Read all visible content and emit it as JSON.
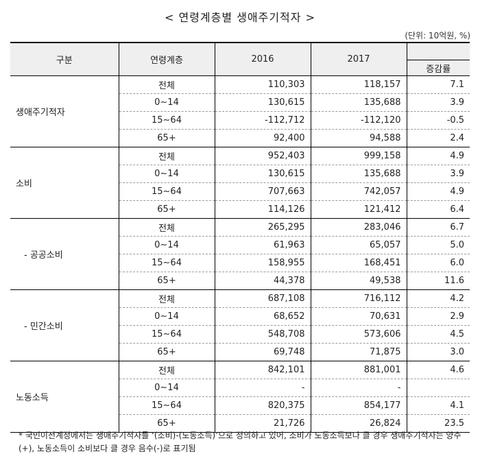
{
  "title": "< 연령계층별  생애주기적자 >",
  "unit": "(단위: 10억원, %)",
  "headers": {
    "category": "구분",
    "age_group": "연령계층",
    "y2016": "2016",
    "y2017": "2017",
    "growth": "증감률"
  },
  "groups": [
    {
      "name": "생애주기적자",
      "rows": [
        {
          "age": "전체",
          "v2016": "110,303",
          "v2017": "118,157",
          "growth": "7.1"
        },
        {
          "age": "0∼14",
          "v2016": "130,615",
          "v2017": "135,688",
          "growth": "3.9"
        },
        {
          "age": "15∼64",
          "v2016": "-112,712",
          "v2017": "-112,120",
          "growth": "-0.5"
        },
        {
          "age": "65+",
          "v2016": "92,400",
          "v2017": "94,588",
          "growth": "2.4"
        }
      ]
    },
    {
      "name": "소비",
      "rows": [
        {
          "age": "전체",
          "v2016": "952,403",
          "v2017": "999,158",
          "growth": "4.9"
        },
        {
          "age": "0∼14",
          "v2016": "130,615",
          "v2017": "135,688",
          "growth": "3.9"
        },
        {
          "age": "15∼64",
          "v2016": "707,663",
          "v2017": "742,057",
          "growth": "4.9"
        },
        {
          "age": "65+",
          "v2016": "114,126",
          "v2017": "121,412",
          "growth": "6.4"
        }
      ]
    },
    {
      "name": "- 공공소비",
      "rows": [
        {
          "age": "전체",
          "v2016": "265,295",
          "v2017": "283,046",
          "growth": "6.7"
        },
        {
          "age": "0∼14",
          "v2016": "61,963",
          "v2017": "65,057",
          "growth": "5.0"
        },
        {
          "age": "15∼64",
          "v2016": "158,955",
          "v2017": "168,451",
          "growth": "6.0"
        },
        {
          "age": "65+",
          "v2016": "44,378",
          "v2017": "49,538",
          "growth": "11.6"
        }
      ]
    },
    {
      "name": "- 민간소비",
      "rows": [
        {
          "age": "전체",
          "v2016": "687,108",
          "v2017": "716,112",
          "growth": "4.2"
        },
        {
          "age": "0∼14",
          "v2016": "68,652",
          "v2017": "70,631",
          "growth": "2.9"
        },
        {
          "age": "15∼64",
          "v2016": "548,708",
          "v2017": "573,606",
          "growth": "4.5"
        },
        {
          "age": "65+",
          "v2016": "69,748",
          "v2017": "71,875",
          "growth": "3.0"
        }
      ]
    },
    {
      "name": "노동소득",
      "rows": [
        {
          "age": "전체",
          "v2016": "842,101",
          "v2017": "881,001",
          "growth": "4.6"
        },
        {
          "age": "0∼14",
          "v2016": "-",
          "v2017": "-",
          "growth": ""
        },
        {
          "age": "15∼64",
          "v2016": "820,375",
          "v2017": "854,177",
          "growth": "4.1"
        },
        {
          "age": "65+",
          "v2016": "21,726",
          "v2017": "26,824",
          "growth": "23.5"
        }
      ]
    }
  ],
  "footnote": "* 국민이전계정에서는 생애주기적자를 ‘(소비)-(노동소득)’으로 정의하고 있어, 소비가 노동소득보다 클 경우 생애주기적자는 양수(+), 노동소득이 소비보다 클 경우 음수(-)로 표기됨"
}
